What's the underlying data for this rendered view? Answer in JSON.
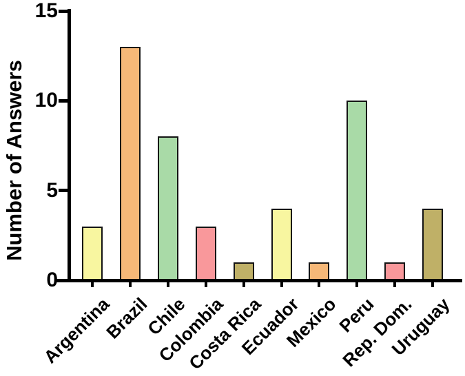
{
  "chart_data": {
    "type": "bar",
    "title": "",
    "xlabel": "",
    "ylabel": "Number of Answers",
    "categories": [
      "Argentina",
      "Brazil",
      "Chile",
      "Colombia",
      "Costa Rica",
      "Ecuador",
      "Mexico",
      "Peru",
      "Rep. Dom.",
      "Uruguay"
    ],
    "values": [
      3,
      13,
      8,
      3,
      1,
      4,
      1,
      10,
      1,
      4
    ],
    "bar_colors": [
      "#F8F6A0",
      "#F6B878",
      "#A9DAA7",
      "#F9989B",
      "#BFB067",
      "#F8F6A0",
      "#F6B878",
      "#A9DAA7",
      "#F9989B",
      "#BFB067"
    ],
    "ylim": [
      0,
      15
    ],
    "yticks": [
      0,
      5,
      10,
      15
    ],
    "grid": false,
    "legend": "none",
    "axis_color": "#000000",
    "bar_border_color": "#141414",
    "background_color": "#FFFFFF"
  }
}
